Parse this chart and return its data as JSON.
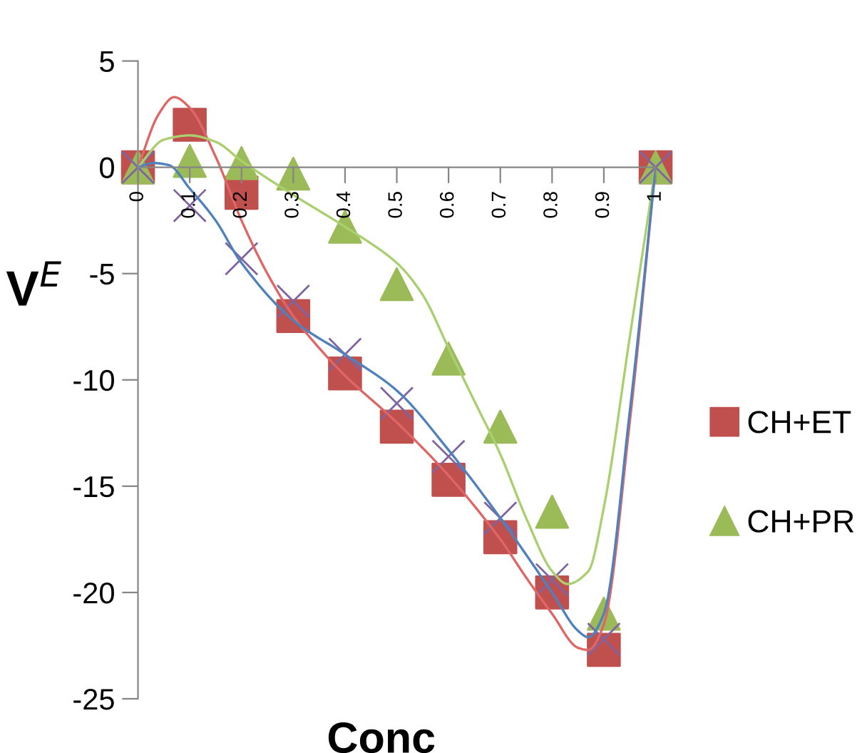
{
  "chart_data": {
    "type": "scatter",
    "xlabel": "Conc",
    "ylabel": "V$^{E}$",
    "xlim": [
      0,
      1
    ],
    "xticks": [
      0,
      0.1,
      0.2,
      0.3,
      0.4,
      0.5,
      0.6,
      0.7,
      0.8,
      0.9,
      1
    ],
    "ylim": [
      -25,
      5
    ],
    "yticks": [
      -25,
      -20,
      -15,
      -10,
      -5,
      0,
      5
    ],
    "grid": false,
    "legend": "right",
    "series": [
      {
        "type": "line",
        "color": "#e06666",
        "x": [
          0,
          0.04,
          0.07,
          0.1,
          0.15,
          0.2,
          0.25,
          0.3,
          0.35,
          0.4,
          0.5,
          0.6,
          0.7,
          0.75,
          0.8,
          0.85,
          0.87,
          0.9,
          0.95,
          1
        ],
        "values": [
          0,
          2.5,
          3.3,
          2.8,
          0.5,
          -2.5,
          -5,
          -7,
          -8.5,
          -9.8,
          -12,
          -14.5,
          -17.5,
          -19.3,
          -21,
          -22.6,
          -22.7,
          -21.5,
          -12,
          0
        ]
      },
      {
        "type": "line",
        "color": "#a9cf6e",
        "x": [
          0,
          0.05,
          0.1,
          0.15,
          0.2,
          0.3,
          0.4,
          0.5,
          0.55,
          0.6,
          0.65,
          0.7,
          0.75,
          0.8,
          0.83,
          0.87,
          0.9,
          0.95,
          1
        ],
        "values": [
          0,
          1.3,
          1.5,
          1.2,
          0.3,
          -1.3,
          -2.8,
          -4.5,
          -6,
          -8.5,
          -11,
          -13.5,
          -16.5,
          -19,
          -19.6,
          -19,
          -16,
          -8,
          0
        ]
      },
      {
        "type": "line",
        "color": "#4f81bd",
        "x": [
          0,
          0.03,
          0.06,
          0.1,
          0.15,
          0.2,
          0.3,
          0.4,
          0.5,
          0.6,
          0.7,
          0.8,
          0.85,
          0.87,
          0.9,
          0.95,
          1
        ],
        "values": [
          0,
          0.2,
          0.1,
          -1,
          -2.5,
          -4.5,
          -7.2,
          -8.8,
          -10.5,
          -13.3,
          -16.5,
          -20,
          -21.8,
          -22.1,
          -21,
          -11.5,
          0
        ]
      },
      {
        "type": "scatter",
        "name": "CH+ET",
        "color": "#c0504d",
        "marker": "square",
        "x": [
          0,
          0.1,
          0.2,
          0.3,
          0.4,
          0.5,
          0.6,
          0.7,
          0.8,
          0.9,
          1
        ],
        "values": [
          0,
          2,
          -1.2,
          -7,
          -9.7,
          -12.2,
          -14.7,
          -17.4,
          -20,
          -22.7,
          0
        ]
      },
      {
        "type": "scatter",
        "name": "CH+PR",
        "color": "#9bbb59",
        "marker": "triangle",
        "x": [
          0,
          0.1,
          0.2,
          0.3,
          0.4,
          0.5,
          0.6,
          0.7,
          0.8,
          0.9,
          1
        ],
        "values": [
          0,
          0.3,
          0.2,
          -0.3,
          -2.8,
          -5.5,
          -9,
          -12.2,
          -16.2,
          -21,
          0
        ]
      },
      {
        "type": "scatter",
        "color": "#8064a2",
        "marker": "cross",
        "x": [
          0,
          0.1,
          0.2,
          0.3,
          0.4,
          0.5,
          0.6,
          0.7,
          0.8,
          0.9,
          1
        ],
        "values": [
          0,
          -1.8,
          -4.3,
          -6.3,
          -8.8,
          -11.1,
          -13.6,
          -16.5,
          -19.4,
          -22.2,
          0
        ]
      }
    ]
  }
}
